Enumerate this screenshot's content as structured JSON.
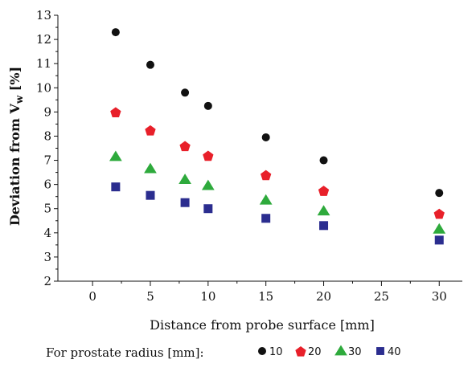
{
  "chart_data": {
    "type": "scatter",
    "title": "",
    "xlabel": "Distance from probe surface [mm]",
    "ylabel_main": "Deviation from V",
    "ylabel_sub": "w",
    "ylabel_unit": " [%]",
    "xlim": [
      -3,
      32
    ],
    "ylim": [
      2,
      13
    ],
    "x_ticks": [
      0,
      5,
      10,
      15,
      20,
      25,
      30
    ],
    "y_ticks": [
      2,
      3,
      4,
      5,
      6,
      7,
      8,
      9,
      10,
      11,
      12,
      13
    ],
    "grid": false,
    "legend_title": "For prostate radius [mm]:",
    "legend_position": "bottom",
    "series": [
      {
        "name": "10",
        "marker": "circle",
        "color": "#111111",
        "points": [
          [
            2,
            12.3
          ],
          [
            5,
            10.95
          ],
          [
            8,
            9.8
          ],
          [
            10,
            9.25
          ],
          [
            15,
            7.95
          ],
          [
            20,
            7.0
          ],
          [
            30,
            5.65
          ]
        ]
      },
      {
        "name": "20",
        "marker": "pentagon",
        "color": "#e8202a",
        "points": [
          [
            2,
            9.0
          ],
          [
            5,
            8.25
          ],
          [
            8,
            7.6
          ],
          [
            10,
            7.2
          ],
          [
            15,
            6.4
          ],
          [
            20,
            5.75
          ],
          [
            30,
            4.8
          ]
        ]
      },
      {
        "name": "30",
        "marker": "triangle",
        "color": "#2eaa3c",
        "points": [
          [
            2,
            7.15
          ],
          [
            5,
            6.65
          ],
          [
            8,
            6.2
          ],
          [
            10,
            5.95
          ],
          [
            15,
            5.35
          ],
          [
            20,
            4.9
          ],
          [
            30,
            4.15
          ]
        ]
      },
      {
        "name": "40",
        "marker": "square",
        "color": "#2b2d8f",
        "points": [
          [
            2,
            5.9
          ],
          [
            5,
            5.55
          ],
          [
            8,
            5.25
          ],
          [
            10,
            5.0
          ],
          [
            15,
            4.6
          ],
          [
            20,
            4.3
          ],
          [
            30,
            3.7
          ]
        ]
      }
    ]
  }
}
